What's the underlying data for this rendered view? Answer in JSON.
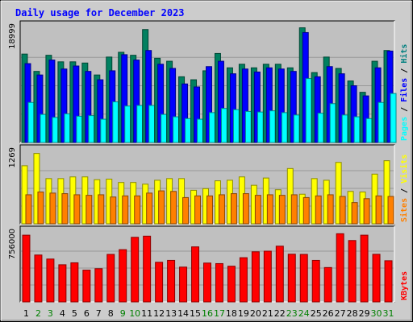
{
  "chart_data": {
    "type": "bar",
    "title": "Daily usage for December 2023",
    "title_color": "#0000ff",
    "background_color": "#cccccc",
    "panel_color": "#c0c0c0",
    "grid": true,
    "categories": [
      "1",
      "2",
      "3",
      "4",
      "5",
      "6",
      "7",
      "8",
      "9",
      "10",
      "11",
      "12",
      "13",
      "14",
      "15",
      "16",
      "17",
      "18",
      "19",
      "20",
      "21",
      "22",
      "23",
      "24",
      "25",
      "26",
      "27",
      "28",
      "29",
      "30",
      "31"
    ],
    "weekend_days": [
      "2",
      "3",
      "9",
      "10",
      "16",
      "17",
      "23",
      "24",
      "30",
      "31"
    ],
    "weekday_label_color": "#000000",
    "weekend_label_color": "#008000",
    "panels": [
      {
        "ymax": 18999,
        "ymax_label": "18999",
        "right_label": [
          {
            "text": "Pages",
            "color": "#00ffff"
          },
          {
            "text": " / ",
            "color": "#000000"
          },
          {
            "text": "Files",
            "color": "#0000ff"
          },
          {
            "text": " / ",
            "color": "#000000"
          },
          {
            "text": "Hits",
            "color": "#008080"
          }
        ],
        "series": [
          {
            "name": "Hits",
            "color": "#008060",
            "values": [
              14800,
              11900,
              14600,
              13500,
              13500,
              13300,
              11300,
              14300,
              15100,
              14600,
              18900,
              14100,
              13600,
              11000,
              10500,
              12000,
              14900,
              12500,
              13100,
              12500,
              13100,
              13100,
              12500,
              19200,
              11700,
              14300,
              12400,
              10300,
              8400,
              13600,
              15400
            ]
          },
          {
            "name": "Files",
            "color": "#0000ff",
            "values": [
              13200,
              11300,
              13800,
              12300,
              12800,
              11900,
              10500,
              12000,
              14700,
              13800,
              15400,
              13100,
              12400,
              9800,
              9300,
              12700,
              13600,
              11500,
              12300,
              11800,
              12500,
              12300,
              11900,
              18400,
              11000,
              12700,
              11500,
              9500,
              7800,
              12500,
              15300
            ]
          },
          {
            "name": "Pages",
            "color": "#00ffff",
            "values": [
              6700,
              4700,
              4200,
              4800,
              4400,
              4500,
              3900,
              6800,
              6100,
              6200,
              6200,
              4700,
              4300,
              4000,
              3900,
              5000,
              5700,
              5500,
              5200,
              5100,
              5300,
              5000,
              4600,
              10700,
              4900,
              6500,
              4600,
              4300,
              4000,
              6700,
              8200
            ]
          }
        ]
      },
      {
        "ymax": 1269,
        "ymax_label": "1269",
        "right_label": [
          {
            "text": "Sites",
            "color": "#ff8000"
          },
          {
            "text": " / ",
            "color": "#000000"
          },
          {
            "text": "Visits",
            "color": "#ffff00"
          }
        ],
        "series": [
          {
            "name": "Visits",
            "color": "#ffff00",
            "values": [
              1040,
              1260,
              810,
              810,
              840,
              840,
              790,
              800,
              740,
              740,
              710,
              780,
              810,
              810,
              600,
              630,
              770,
              780,
              840,
              690,
              820,
              610,
              990,
              530,
              810,
              780,
              1100,
              580,
              570,
              890,
              1130
            ]
          },
          {
            "name": "Sites",
            "color": "#ff8000",
            "values": [
              520,
              570,
              550,
              540,
              520,
              510,
              520,
              480,
              500,
              500,
              550,
              590,
              580,
              470,
              500,
              500,
              520,
              540,
              540,
              510,
              520,
              510,
              520,
              470,
              500,
              520,
              490,
              380,
              450,
              500,
              490
            ]
          }
        ]
      },
      {
        "ymax": 756000,
        "ymax_label": "756000",
        "right_label": [
          {
            "text": "KBytes",
            "color": "#ff0000"
          }
        ],
        "series": [
          {
            "name": "KBytes",
            "color": "#ff0000",
            "values": [
              746000,
              524000,
              479000,
              415000,
              437000,
              355000,
              371000,
              531000,
              584000,
              722000,
              735000,
              443000,
              464000,
              389000,
              615000,
              434000,
              428000,
              399000,
              494000,
              560000,
              567000,
              623000,
              533000,
              531000,
              464000,
              384000,
              762000,
              686000,
              746000,
              532000,
              460000
            ]
          }
        ]
      }
    ]
  }
}
